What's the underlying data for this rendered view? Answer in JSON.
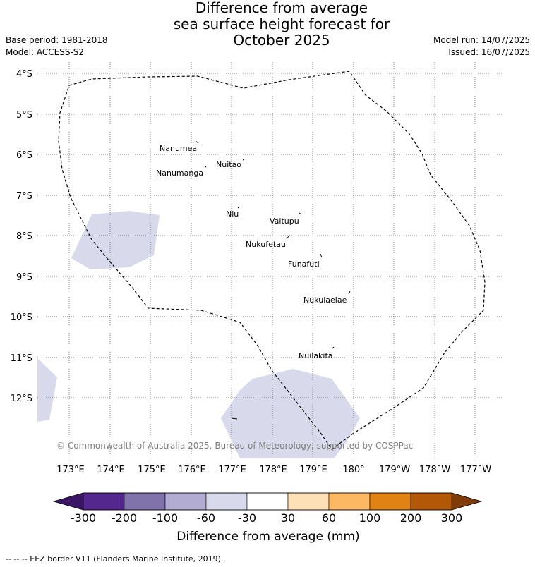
{
  "title": {
    "line1": "Difference from average",
    "line2": "sea surface height forecast for",
    "line3": "October 2025"
  },
  "meta": {
    "base_period": "Base period: 1981-2018",
    "model": "Model: ACCESS-S2",
    "model_run": "Model run: 14/07/2025",
    "issued": "Issued: 16/07/2025"
  },
  "map": {
    "lat_labels": [
      "4°S",
      "5°S",
      "6°S",
      "7°S",
      "8°S",
      "9°S",
      "10°S",
      "11°S",
      "12°S"
    ],
    "lon_labels": [
      "173°E",
      "174°E",
      "175°E",
      "176°E",
      "177°E",
      "178°E",
      "179°E",
      "180°",
      "179°W",
      "178°W",
      "177°W"
    ],
    "islands": [
      "Nanumea",
      "Nuitao",
      "Nanumanga",
      "Niu",
      "Vaitupu",
      "Nukufetau",
      "Funafuti",
      "Nukulaelae",
      "Nuilakita"
    ],
    "copyright": "© Commonwealth of Australia 2025, Bureau of Meteorology, supported by COSPPac",
    "grid": true,
    "eez_line": "dashed"
  },
  "colorbar": {
    "ticks": [
      "-300",
      "-200",
      "-100",
      "-60",
      "-30",
      "30",
      "60",
      "100",
      "200",
      "300"
    ],
    "colors": [
      "#3b1566",
      "#54278f",
      "#8073ac",
      "#b2abd2",
      "#d8daeb",
      "#ffffff",
      "#fee0b6",
      "#fdb863",
      "#e08214",
      "#b35806",
      "#7f3b08"
    ],
    "title": "Difference from average (mm)"
  },
  "footer": "--  --  -- EEZ border V11 (Flanders Marine Institute, 2019)."
}
